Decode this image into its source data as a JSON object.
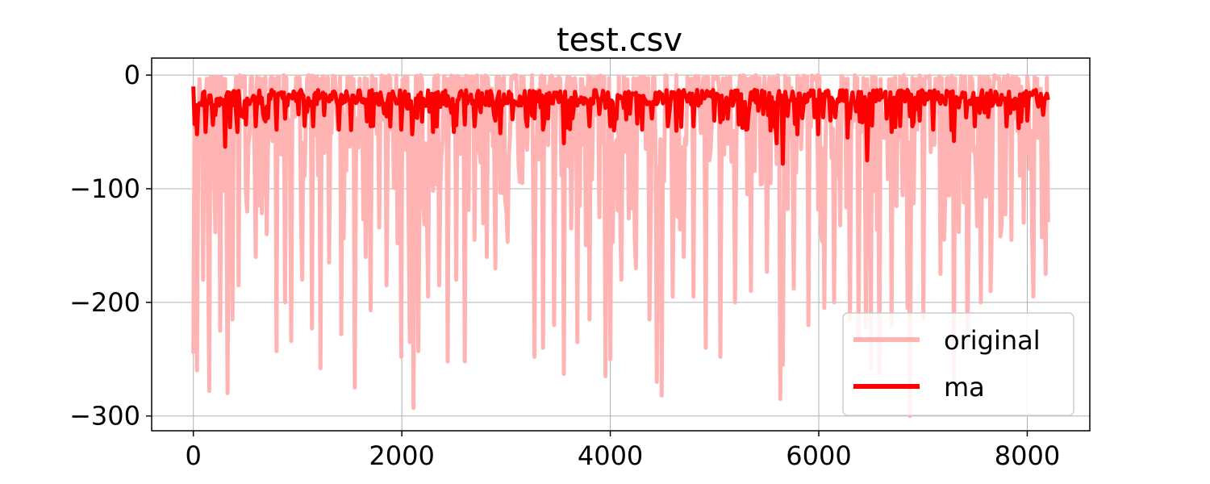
{
  "chart_data": {
    "type": "line",
    "title": "test.csv",
    "xlabel": "",
    "ylabel": "",
    "xlim": [
      -400,
      8600
    ],
    "ylim": [
      -313,
      15
    ],
    "x_ticks": [
      0,
      2000,
      4000,
      6000,
      8000
    ],
    "x_tick_labels": [
      "0",
      "2000",
      "4000",
      "6000",
      "8000"
    ],
    "y_ticks": [
      0,
      -100,
      -200,
      -300
    ],
    "y_tick_labels": [
      "0",
      "−100",
      "−200",
      "−300"
    ],
    "grid": true,
    "legend_position": "lower-right",
    "x_range": [
      0,
      8200
    ],
    "series": [
      {
        "name": "original",
        "color": "#ffb3b3",
        "baseline_range": [
          -5,
          0
        ],
        "dips": [
          [
            0,
            -245
          ],
          [
            40,
            -260
          ],
          [
            90,
            -180
          ],
          [
            150,
            -278
          ],
          [
            200,
            -95
          ],
          [
            260,
            -225
          ],
          [
            330,
            -280
          ],
          [
            380,
            -215
          ],
          [
            430,
            -185
          ],
          [
            520,
            -120
          ],
          [
            600,
            -160
          ],
          [
            700,
            -140
          ],
          [
            800,
            -243
          ],
          [
            880,
            -200
          ],
          [
            940,
            -234
          ],
          [
            1040,
            -180
          ],
          [
            1140,
            -223
          ],
          [
            1220,
            -258
          ],
          [
            1300,
            -165
          ],
          [
            1420,
            -228
          ],
          [
            1550,
            -275
          ],
          [
            1650,
            -160
          ],
          [
            1700,
            -207
          ],
          [
            1850,
            -185
          ],
          [
            1960,
            -148
          ],
          [
            2000,
            -248
          ],
          [
            2080,
            -235
          ],
          [
            2110,
            -293
          ],
          [
            2160,
            -243
          ],
          [
            2250,
            -195
          ],
          [
            2360,
            -185
          ],
          [
            2440,
            -252
          ],
          [
            2520,
            -180
          ],
          [
            2600,
            -252
          ],
          [
            2700,
            -145
          ],
          [
            2820,
            -160
          ],
          [
            2900,
            -170
          ],
          [
            3000,
            -120
          ],
          [
            3150,
            -95
          ],
          [
            3270,
            -248
          ],
          [
            3350,
            -240
          ],
          [
            3460,
            -220
          ],
          [
            3560,
            -263
          ],
          [
            3680,
            -235
          ],
          [
            3800,
            -215
          ],
          [
            3950,
            -265
          ],
          [
            4000,
            -250
          ],
          [
            4100,
            -180
          ],
          [
            4250,
            -170
          ],
          [
            4370,
            -215
          ],
          [
            4450,
            -270
          ],
          [
            4490,
            -282
          ],
          [
            4600,
            -195
          ],
          [
            4700,
            -160
          ],
          [
            4800,
            -195
          ],
          [
            4920,
            -240
          ],
          [
            5060,
            -248
          ],
          [
            5200,
            -200
          ],
          [
            5350,
            -190
          ],
          [
            5500,
            -173
          ],
          [
            5630,
            -285
          ],
          [
            5660,
            -255
          ],
          [
            5760,
            -188
          ],
          [
            5900,
            -220
          ],
          [
            6050,
            -205
          ],
          [
            6150,
            -200
          ],
          [
            6300,
            -215
          ],
          [
            6380,
            -232
          ],
          [
            6450,
            -222
          ],
          [
            6500,
            -258
          ],
          [
            6580,
            -262
          ],
          [
            6700,
            -220
          ],
          [
            6850,
            -205
          ],
          [
            6880,
            -300
          ],
          [
            7000,
            -215
          ],
          [
            7170,
            -175
          ],
          [
            7300,
            -270
          ],
          [
            7430,
            -240
          ],
          [
            7550,
            -200
          ],
          [
            7650,
            -190
          ],
          [
            7740,
            -142
          ],
          [
            7850,
            -145
          ],
          [
            7960,
            -130
          ],
          [
            8060,
            -195
          ],
          [
            8180,
            -175
          ]
        ]
      },
      {
        "name": "ma",
        "color": "#ff0000",
        "level_start": -10,
        "level_typical": -20,
        "spikes": [
          [
            30,
            -52
          ],
          [
            120,
            -50
          ],
          [
            300,
            -63
          ],
          [
            420,
            -50
          ],
          [
            600,
            -45
          ],
          [
            800,
            -48
          ],
          [
            1150,
            -45
          ],
          [
            1400,
            -48
          ],
          [
            1700,
            -45
          ],
          [
            2000,
            -48
          ],
          [
            2100,
            -52
          ],
          [
            2300,
            -50
          ],
          [
            2500,
            -50
          ],
          [
            2700,
            -45
          ],
          [
            2900,
            -40
          ],
          [
            3200,
            -45
          ],
          [
            3350,
            -48
          ],
          [
            3560,
            -60
          ],
          [
            3800,
            -45
          ],
          [
            4000,
            -45
          ],
          [
            4300,
            -48
          ],
          [
            4550,
            -45
          ],
          [
            4800,
            -45
          ],
          [
            5000,
            -40
          ],
          [
            5300,
            -48
          ],
          [
            5600,
            -60
          ],
          [
            5650,
            -78
          ],
          [
            5800,
            -52
          ],
          [
            6000,
            -52
          ],
          [
            6280,
            -55
          ],
          [
            6460,
            -75
          ],
          [
            6700,
            -50
          ],
          [
            6900,
            -45
          ],
          [
            7100,
            -48
          ],
          [
            7300,
            -58
          ],
          [
            7500,
            -45
          ],
          [
            7800,
            -45
          ],
          [
            8000,
            -40
          ],
          [
            8150,
            -35
          ]
        ]
      }
    ]
  }
}
